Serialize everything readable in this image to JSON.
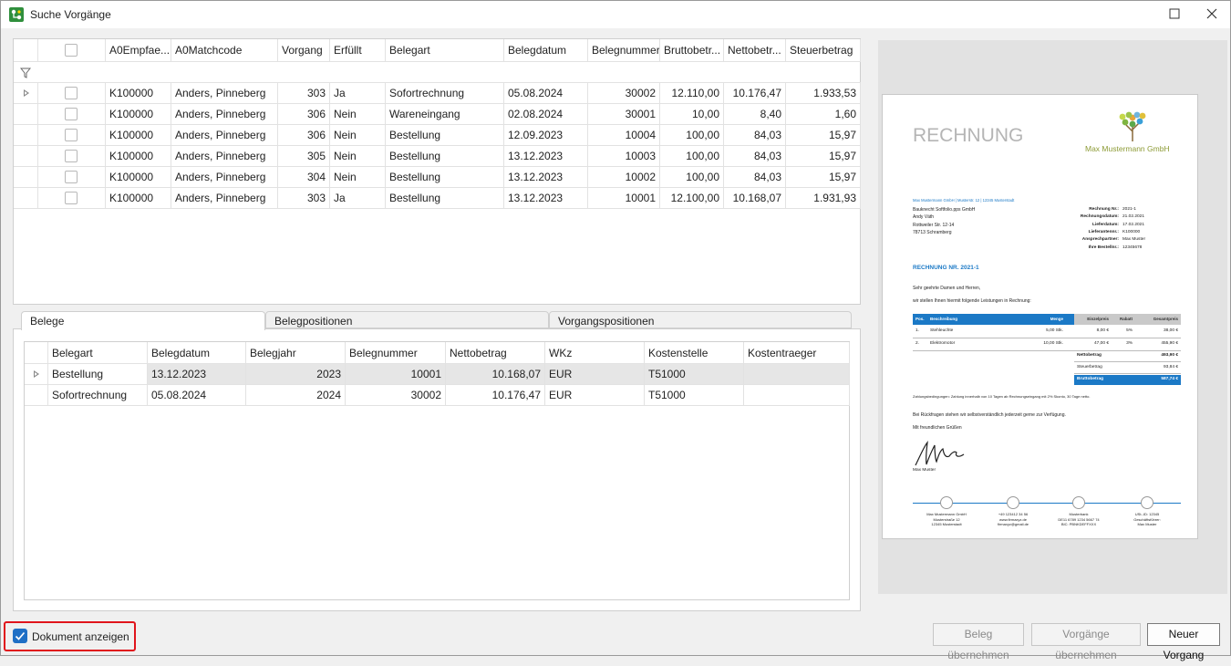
{
  "window": {
    "title": "Suche Vorgänge"
  },
  "top_grid": {
    "columns": [
      "A0Empfae...",
      "A0Matchcode",
      "Vorgang",
      "Erfüllt",
      "Belegart",
      "Belegdatum",
      "Belegnummer",
      "Bruttobetr...",
      "Nettobetr...",
      "Steuerbetrag"
    ],
    "rows": [
      [
        "K100000",
        "Anders, Pinneberg",
        "303",
        "Ja",
        "Sofortrechnung",
        "05.08.2024",
        "30002",
        "12.110,00",
        "10.176,47",
        "1.933,53"
      ],
      [
        "K100000",
        "Anders, Pinneberg",
        "306",
        "Nein",
        "Wareneingang",
        "02.08.2024",
        "30001",
        "10,00",
        "8,40",
        "1,60"
      ],
      [
        "K100000",
        "Anders, Pinneberg",
        "306",
        "Nein",
        "Bestellung",
        "12.09.2023",
        "10004",
        "100,00",
        "84,03",
        "15,97"
      ],
      [
        "K100000",
        "Anders, Pinneberg",
        "305",
        "Nein",
        "Bestellung",
        "13.12.2023",
        "10003",
        "100,00",
        "84,03",
        "15,97"
      ],
      [
        "K100000",
        "Anders, Pinneberg",
        "304",
        "Nein",
        "Bestellung",
        "13.12.2023",
        "10002",
        "100,00",
        "84,03",
        "15,97"
      ],
      [
        "K100000",
        "Anders, Pinneberg",
        "303",
        "Ja",
        "Bestellung",
        "13.12.2023",
        "10001",
        "12.100,00",
        "10.168,07",
        "1.931,93"
      ]
    ]
  },
  "tabs": [
    "Belege",
    "Belegpositionen",
    "Vorgangspositionen"
  ],
  "bottom_grid": {
    "columns": [
      "Belegart",
      "Belegdatum",
      "Belegjahr",
      "Belegnummer",
      "Nettobetrag",
      "WKz",
      "Kostenstelle",
      "Kostentraeger"
    ],
    "rows": [
      [
        "Bestellung",
        "13.12.2023",
        "2023",
        "10001",
        "10.168,07",
        "EUR",
        "T51000"
      ],
      [
        "Sofortrechnung",
        "05.08.2024",
        "2024",
        "30002",
        "10.176,47",
        "EUR",
        "T51000"
      ]
    ]
  },
  "document_preview": {
    "title": "RECHNUNG",
    "company": "Max Mustermann GmbH",
    "sender_line": "Max Mustermann GmbH | Musterstr. 12 | 12345 Musterstadt",
    "address": [
      "Bauknecht Softfolio.pps GmbH",
      "Andy Väth",
      "Rottweiler Str. 12-14",
      "78713 Schramberg"
    ],
    "meta": [
      [
        "Rechnung Nr.:",
        "2021-1"
      ],
      [
        "Rechnungsdatum:",
        "21.02.2021"
      ],
      [
        "Lieferdatum:",
        "17.02.2021"
      ],
      [
        "Lieferantennr.:",
        "K100000"
      ],
      [
        "Ansprechpartner:",
        "Max Muster"
      ],
      [
        "Ihre Bestellnr.:",
        "12345678"
      ]
    ],
    "heading": "RECHNUNG NR. 2021-1",
    "greeting": "Sehr geehrte Damen und Herren,",
    "intro": "wir stellen Ihnen hiermit folgende Leistungen in Rechnung:",
    "table_header": [
      "Pos.",
      "Beschreibung",
      "Menge",
      "Einzelpreis",
      "Rabatt",
      "Gesamtpreis"
    ],
    "table_rows": [
      [
        "1.",
        "Stehleuchte",
        "5,00 Stk.",
        "8,00 €",
        "5%",
        "38,00 €"
      ],
      [
        "2.",
        "Elektromotor",
        "10,00 Stk.",
        "47,00 €",
        "3%",
        "455,90 €"
      ]
    ],
    "totals": [
      [
        "Nettobetrag",
        "493,90 €"
      ],
      [
        "Steuerbetrag",
        "93,84 €"
      ],
      [
        "Bruttobetrag",
        "587,74 €"
      ]
    ],
    "payment_terms": "Zahlungsbedingungen: Zahlung innerhalb von 10 Tagen ab Rechnungseingang mit 2% Skonto, 30 Tage netto.",
    "closing": "Bei Rückfragen stehen wir selbstverständlich jederzeit gerne zur Verfügung.",
    "regards": "Mit freundlichen Grüßen",
    "signer": "Max Muster",
    "footer": [
      [
        "Max Mustermann GmbH",
        "Musterstraße 12",
        "12345 Musterstadt"
      ],
      [
        "+49 123412 34 56",
        "www.firmaxyz.de",
        "firmaxyz@gmail.de"
      ],
      [
        "Musterbank",
        "DE11 6789 1234 5667 74",
        "BIC: PBNKDEFFXXX"
      ],
      [
        "USt.-ID: 12345",
        "Geschäftsführer:",
        "Max Muster"
      ]
    ]
  },
  "show_document": {
    "label": "Dokument anzeigen"
  },
  "buttons": [
    "Beleg übernehmen",
    "Vorgänge übernehmen",
    "Neuer Vorgang"
  ]
}
